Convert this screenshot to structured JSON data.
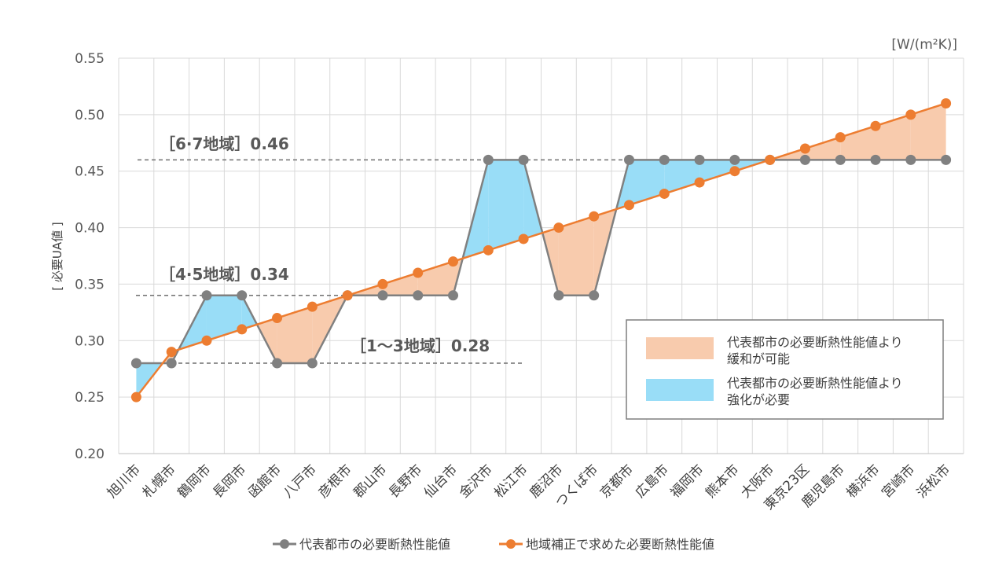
{
  "chart_data": {
    "type": "line",
    "unit": "[W/(m²K)]",
    "ylabel": "[ 必要UA値 ]",
    "ylim": [
      0.2,
      0.55
    ],
    "yticks": [
      "0.20",
      "0.25",
      "0.30",
      "0.35",
      "0.40",
      "0.45",
      "0.50",
      "0.55"
    ],
    "grid": true,
    "categories": [
      "旭川市",
      "札幌市",
      "鶴岡市",
      "長岡市",
      "函館市",
      "八戸市",
      "彦根市",
      "郡山市",
      "長野市",
      "仙台市",
      "金沢市",
      "松江市",
      "鹿沼市",
      "つくば市",
      "京都市",
      "広島市",
      "福岡市",
      "熊本市",
      "大阪市",
      "東京23区",
      "鹿児島市",
      "横浜市",
      "宮崎市",
      "浜松市"
    ],
    "series": [
      {
        "name": "代表都市の必要断熱性能値",
        "color": "#808080",
        "values": [
          0.28,
          0.28,
          0.34,
          0.34,
          0.28,
          0.28,
          0.34,
          0.34,
          0.34,
          0.34,
          0.46,
          0.46,
          0.34,
          0.34,
          0.46,
          0.46,
          0.46,
          0.46,
          0.46,
          0.46,
          0.46,
          0.46,
          0.46,
          0.46
        ]
      },
      {
        "name": "地域補正で求めた必要断熱性能値",
        "color": "#ED7D31",
        "values": [
          0.25,
          0.29,
          0.3,
          0.31,
          0.32,
          0.33,
          0.34,
          0.35,
          0.36,
          0.37,
          0.38,
          0.39,
          0.4,
          0.41,
          0.42,
          0.43,
          0.44,
          0.45,
          0.46,
          0.47,
          0.48,
          0.49,
          0.5,
          0.51
        ]
      }
    ],
    "reference_lines": [
      {
        "label": "［6·7地域］0.46",
        "value": 0.46,
        "from_index": 0,
        "to_index": 14
      },
      {
        "label": "［4·5地域］0.34",
        "value": 0.34,
        "from_index": 0,
        "to_index": 6
      },
      {
        "label": "［1～3地域］0.28",
        "value": 0.28,
        "from_index": 0,
        "to_index": 11
      }
    ],
    "fill_legend": [
      {
        "label_line1": "代表都市の必要断熱性能値より",
        "label_line2": "緩和が可能",
        "color": "#F8CBAD"
      },
      {
        "label_line1": "代表都市の必要断熱性能値より",
        "label_line2": "強化が必要",
        "color": "#99DDF7"
      }
    ]
  }
}
